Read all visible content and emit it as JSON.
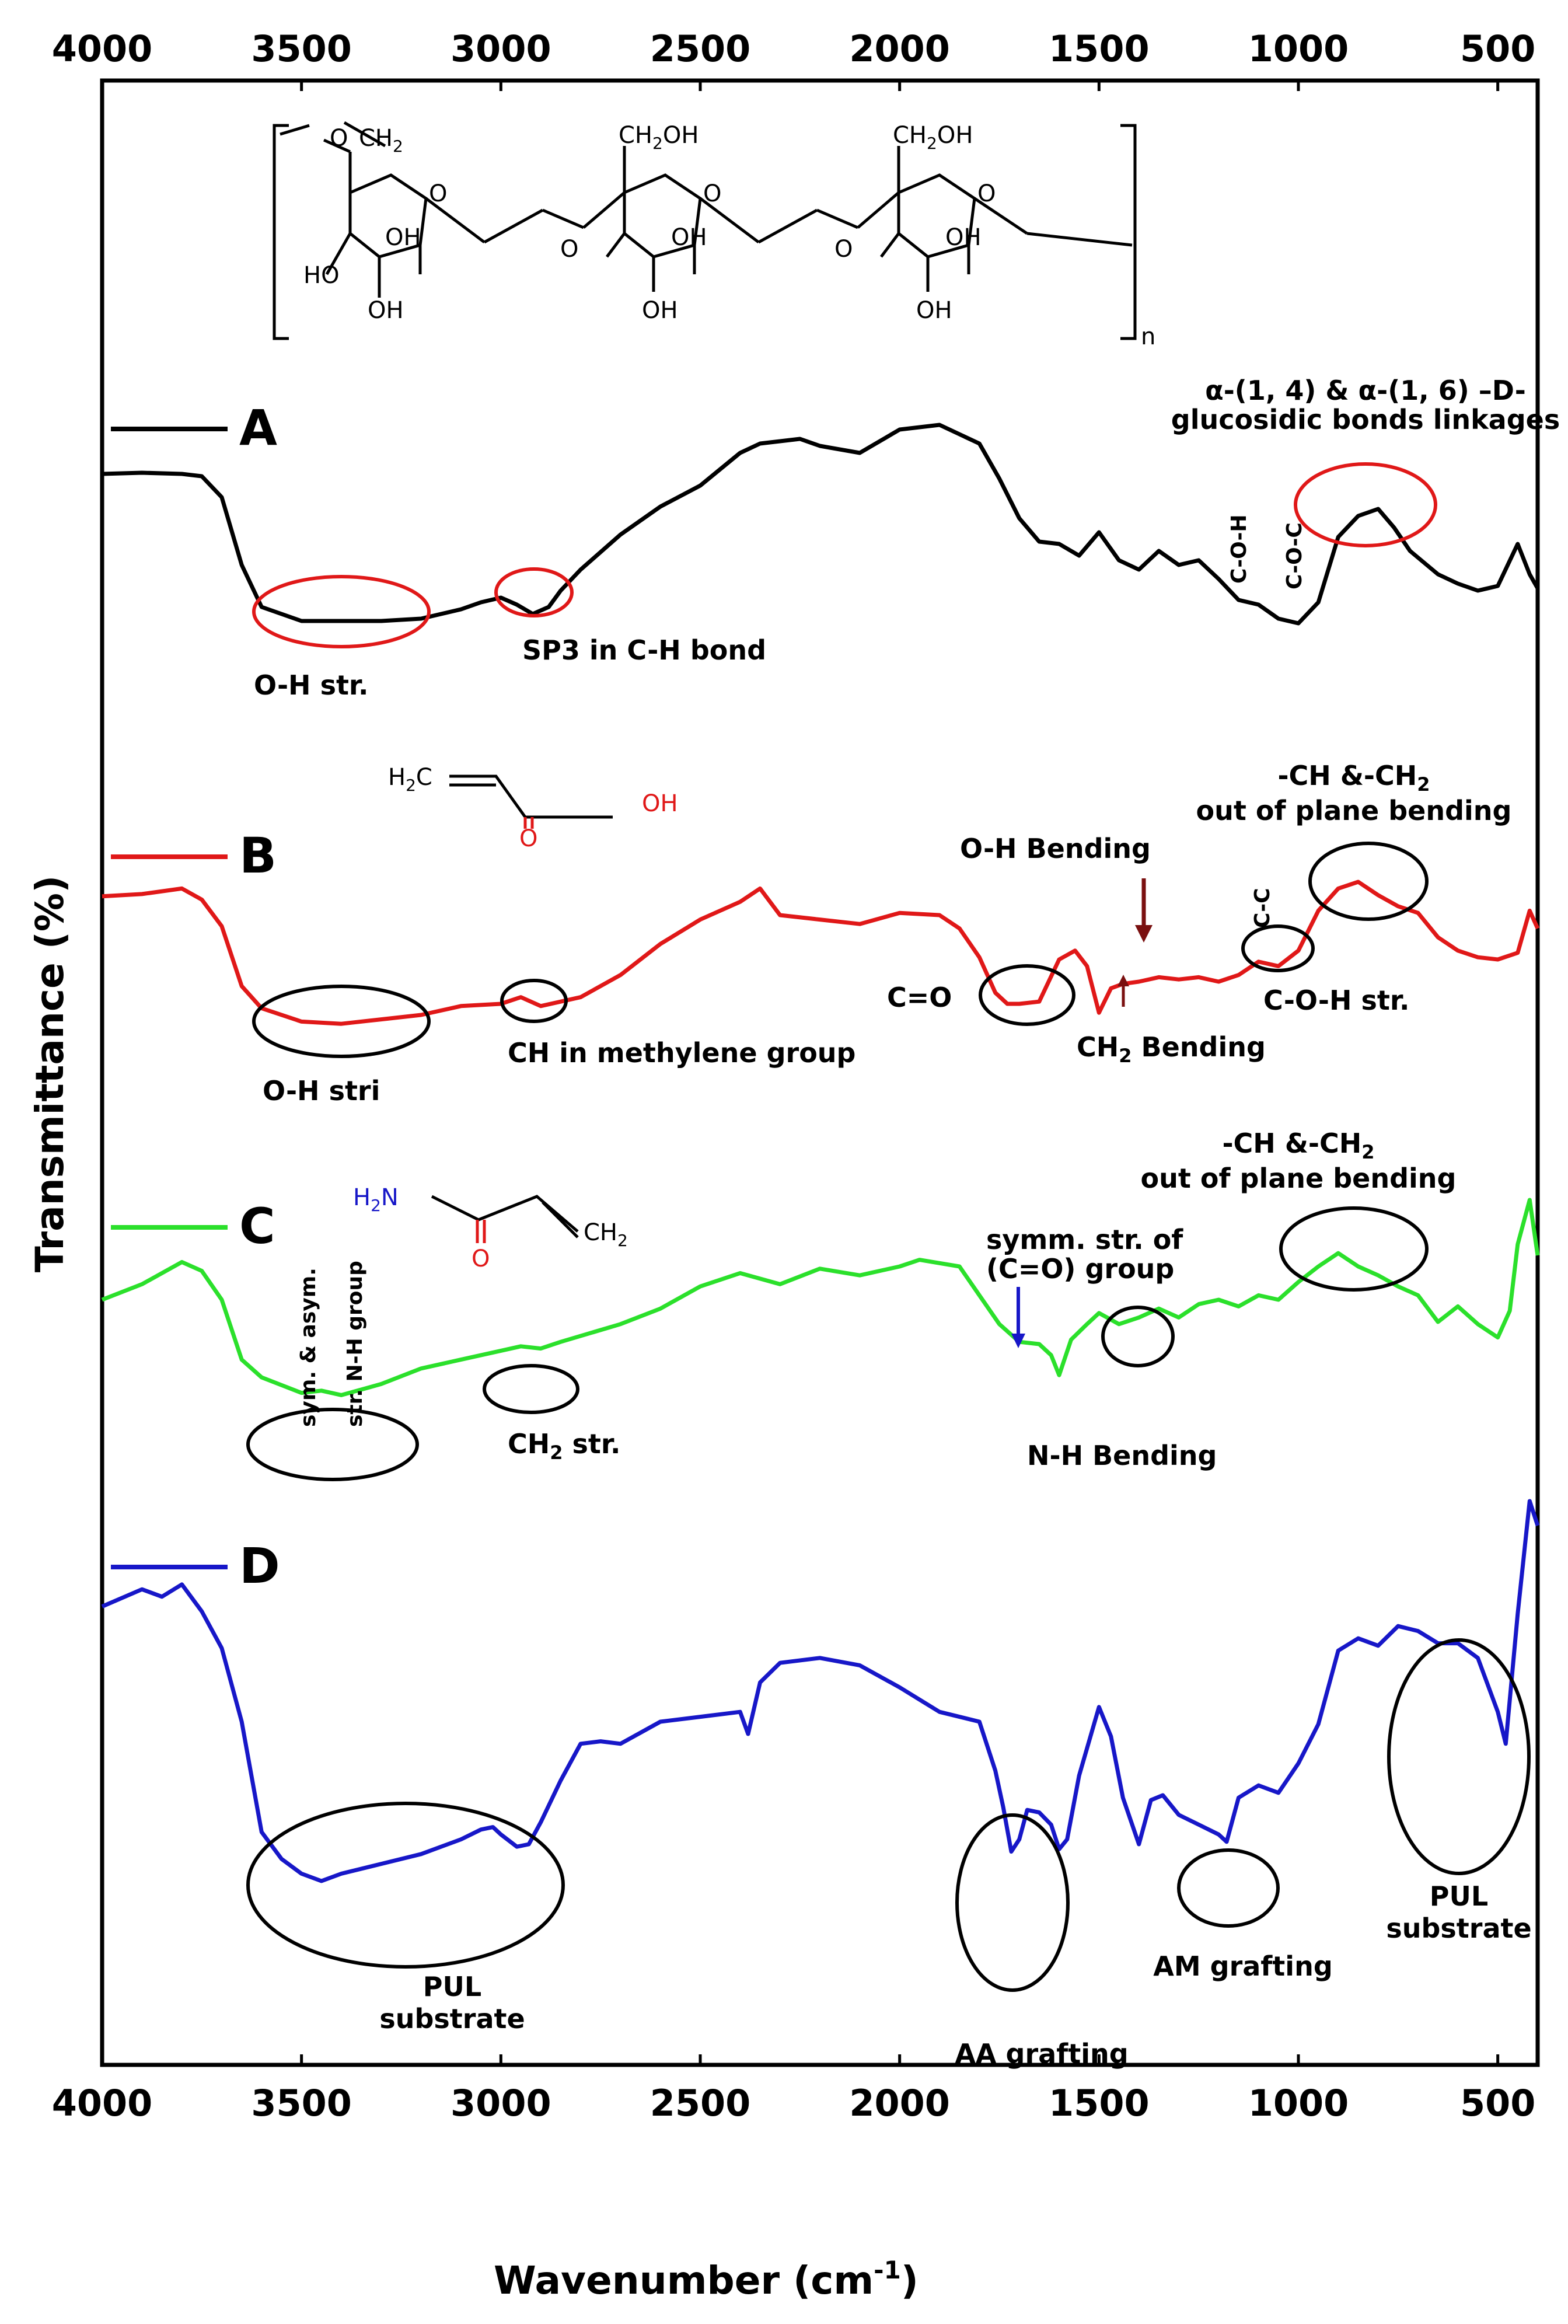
{
  "chart_data": {
    "type": "line",
    "xlabel": "Wavenumber (cm",
    "xlabel_sup": "-1",
    "xlabel_tail": ")",
    "ylabel": "Transmittance (%)",
    "xlim": [
      4000,
      400
    ],
    "x_ticks": [
      "4000",
      "3500",
      "3000",
      "2500",
      "2000",
      "1500",
      "1000",
      "500"
    ],
    "grid": false,
    "legend_placement": "left of each trace",
    "series": [
      {
        "name": "A",
        "color": "#000000",
        "points": [
          [
            4000,
            0.3
          ],
          [
            3900,
            0.25
          ],
          [
            3800,
            0.3
          ],
          [
            3750,
            0.4
          ],
          [
            3700,
            1.3
          ],
          [
            3650,
            4.2
          ],
          [
            3600,
            6.0
          ],
          [
            3500,
            6.6
          ],
          [
            3400,
            6.6
          ],
          [
            3300,
            6.6
          ],
          [
            3200,
            6.5
          ],
          [
            3100,
            6.1
          ],
          [
            3050,
            5.8
          ],
          [
            3000,
            5.6
          ],
          [
            2960,
            5.9
          ],
          [
            2920,
            6.3
          ],
          [
            2880,
            6.0
          ],
          [
            2850,
            5.3
          ],
          [
            2800,
            4.4
          ],
          [
            2700,
            2.9
          ],
          [
            2600,
            1.7
          ],
          [
            2500,
            0.8
          ],
          [
            2400,
            -0.6
          ],
          [
            2350,
            -1.0
          ],
          [
            2300,
            -1.1
          ],
          [
            2250,
            -1.2
          ],
          [
            2200,
            -0.9
          ],
          [
            2100,
            -0.6
          ],
          [
            2000,
            -1.6
          ],
          [
            1900,
            -1.8
          ],
          [
            1800,
            -1.0
          ],
          [
            1750,
            0.5
          ],
          [
            1700,
            2.2
          ],
          [
            1650,
            3.2
          ],
          [
            1600,
            3.3
          ],
          [
            1550,
            3.8
          ],
          [
            1500,
            2.8
          ],
          [
            1450,
            4.0
          ],
          [
            1400,
            4.4
          ],
          [
            1350,
            3.6
          ],
          [
            1300,
            4.2
          ],
          [
            1250,
            4.0
          ],
          [
            1200,
            4.8
          ],
          [
            1150,
            5.7
          ],
          [
            1100,
            5.9
          ],
          [
            1050,
            6.5
          ],
          [
            1000,
            6.7
          ],
          [
            950,
            5.8
          ],
          [
            900,
            3.0
          ],
          [
            850,
            2.1
          ],
          [
            800,
            1.8
          ],
          [
            760,
            2.6
          ],
          [
            720,
            3.6
          ],
          [
            650,
            4.6
          ],
          [
            600,
            5.0
          ],
          [
            550,
            5.3
          ],
          [
            500,
            5.1
          ],
          [
            450,
            3.3
          ],
          [
            420,
            4.6
          ],
          [
            400,
            5.2
          ]
        ]
      },
      {
        "name": "B",
        "color": "#e01818",
        "points": [
          [
            4000,
            0.15
          ],
          [
            3900,
            0.05
          ],
          [
            3800,
            -0.2
          ],
          [
            3750,
            0.3
          ],
          [
            3700,
            1.5
          ],
          [
            3650,
            4.2
          ],
          [
            3600,
            5.2
          ],
          [
            3500,
            5.8
          ],
          [
            3400,
            5.9
          ],
          [
            3300,
            5.7
          ],
          [
            3200,
            5.5
          ],
          [
            3100,
            5.1
          ],
          [
            3000,
            5.0
          ],
          [
            2950,
            4.7
          ],
          [
            2900,
            5.1
          ],
          [
            2800,
            4.7
          ],
          [
            2700,
            3.7
          ],
          [
            2600,
            2.3
          ],
          [
            2500,
            1.2
          ],
          [
            2400,
            0.4
          ],
          [
            2350,
            -0.2
          ],
          [
            2300,
            1.0
          ],
          [
            2200,
            1.2
          ],
          [
            2100,
            1.4
          ],
          [
            2000,
            0.9
          ],
          [
            1900,
            1.0
          ],
          [
            1850,
            1.6
          ],
          [
            1800,
            2.9
          ],
          [
            1760,
            4.5
          ],
          [
            1730,
            5.0
          ],
          [
            1700,
            5.0
          ],
          [
            1650,
            4.9
          ],
          [
            1600,
            3.0
          ],
          [
            1560,
            2.6
          ],
          [
            1530,
            3.3
          ],
          [
            1500,
            5.4
          ],
          [
            1470,
            4.3
          ],
          [
            1440,
            4.1
          ],
          [
            1400,
            4.0
          ],
          [
            1350,
            3.8
          ],
          [
            1300,
            3.9
          ],
          [
            1250,
            3.8
          ],
          [
            1200,
            4.0
          ],
          [
            1150,
            3.7
          ],
          [
            1100,
            3.1
          ],
          [
            1050,
            3.3
          ],
          [
            1000,
            2.6
          ],
          [
            950,
            0.8
          ],
          [
            900,
            -0.2
          ],
          [
            850,
            -0.5
          ],
          [
            800,
            0.1
          ],
          [
            750,
            0.6
          ],
          [
            700,
            0.9
          ],
          [
            650,
            2.0
          ],
          [
            600,
            2.6
          ],
          [
            550,
            2.9
          ],
          [
            500,
            3.0
          ],
          [
            450,
            2.7
          ],
          [
            420,
            0.8
          ],
          [
            400,
            1.6
          ]
        ]
      },
      {
        "name": "C",
        "color": "#2be02b",
        "points": [
          [
            4000,
            1.5
          ],
          [
            3900,
            0.8
          ],
          [
            3800,
            -0.2
          ],
          [
            3750,
            0.2
          ],
          [
            3700,
            1.5
          ],
          [
            3650,
            4.2
          ],
          [
            3600,
            5.0
          ],
          [
            3500,
            5.7
          ],
          [
            3450,
            5.6
          ],
          [
            3400,
            5.8
          ],
          [
            3300,
            5.3
          ],
          [
            3200,
            4.6
          ],
          [
            3100,
            4.2
          ],
          [
            3000,
            3.8
          ],
          [
            2950,
            3.6
          ],
          [
            2900,
            3.7
          ],
          [
            2850,
            3.4
          ],
          [
            2700,
            2.6
          ],
          [
            2600,
            1.9
          ],
          [
            2500,
            0.9
          ],
          [
            2400,
            0.3
          ],
          [
            2300,
            0.8
          ],
          [
            2200,
            0.1
          ],
          [
            2100,
            0.4
          ],
          [
            2000,
            0.0
          ],
          [
            1950,
            -0.3
          ],
          [
            1850,
            0.0
          ],
          [
            1800,
            1.3
          ],
          [
            1750,
            2.6
          ],
          [
            1700,
            3.4
          ],
          [
            1650,
            3.5
          ],
          [
            1620,
            4.0
          ],
          [
            1600,
            4.9
          ],
          [
            1570,
            3.3
          ],
          [
            1530,
            2.6
          ],
          [
            1500,
            2.1
          ],
          [
            1450,
            2.6
          ],
          [
            1400,
            2.3
          ],
          [
            1350,
            1.9
          ],
          [
            1300,
            2.3
          ],
          [
            1250,
            1.7
          ],
          [
            1200,
            1.5
          ],
          [
            1150,
            1.8
          ],
          [
            1100,
            1.3
          ],
          [
            1050,
            1.5
          ],
          [
            1000,
            0.7
          ],
          [
            950,
            0.0
          ],
          [
            900,
            -0.6
          ],
          [
            850,
            0.0
          ],
          [
            800,
            0.4
          ],
          [
            750,
            0.9
          ],
          [
            700,
            1.3
          ],
          [
            650,
            2.5
          ],
          [
            600,
            1.8
          ],
          [
            550,
            2.6
          ],
          [
            500,
            3.2
          ],
          [
            470,
            2.0
          ],
          [
            450,
            -1.0
          ],
          [
            420,
            -3.0
          ],
          [
            400,
            -0.5
          ]
        ]
      },
      {
        "name": "D",
        "color": "#1717c8",
        "points": [
          [
            4000,
            0.3
          ],
          [
            3900,
            -0.4
          ],
          [
            3850,
            -0.1
          ],
          [
            3800,
            -0.6
          ],
          [
            3750,
            0.5
          ],
          [
            3700,
            2.0
          ],
          [
            3650,
            5.0
          ],
          [
            3600,
            9.5
          ],
          [
            3550,
            10.6
          ],
          [
            3500,
            11.2
          ],
          [
            3450,
            11.5
          ],
          [
            3400,
            11.2
          ],
          [
            3300,
            10.8
          ],
          [
            3200,
            10.4
          ],
          [
            3100,
            9.8
          ],
          [
            3050,
            9.4
          ],
          [
            3020,
            9.3
          ],
          [
            3000,
            9.6
          ],
          [
            2960,
            10.1
          ],
          [
            2930,
            10.0
          ],
          [
            2900,
            9.1
          ],
          [
            2850,
            7.4
          ],
          [
            2800,
            5.9
          ],
          [
            2750,
            5.8
          ],
          [
            2700,
            5.9
          ],
          [
            2600,
            5.0
          ],
          [
            2500,
            4.8
          ],
          [
            2400,
            4.6
          ],
          [
            2380,
            5.5
          ],
          [
            2350,
            3.4
          ],
          [
            2300,
            2.6
          ],
          [
            2200,
            2.4
          ],
          [
            2100,
            2.7
          ],
          [
            2000,
            3.6
          ],
          [
            1900,
            4.6
          ],
          [
            1800,
            5.0
          ],
          [
            1760,
            7.0
          ],
          [
            1740,
            8.5
          ],
          [
            1720,
            10.3
          ],
          [
            1700,
            9.8
          ],
          [
            1680,
            8.6
          ],
          [
            1650,
            8.7
          ],
          [
            1620,
            9.2
          ],
          [
            1600,
            10.2
          ],
          [
            1580,
            9.8
          ],
          [
            1550,
            7.2
          ],
          [
            1500,
            4.4
          ],
          [
            1470,
            5.6
          ],
          [
            1440,
            8.1
          ],
          [
            1400,
            10.0
          ],
          [
            1370,
            8.2
          ],
          [
            1340,
            8.0
          ],
          [
            1300,
            8.8
          ],
          [
            1250,
            9.2
          ],
          [
            1200,
            9.6
          ],
          [
            1180,
            9.9
          ],
          [
            1150,
            8.1
          ],
          [
            1100,
            7.6
          ],
          [
            1050,
            7.9
          ],
          [
            1000,
            6.7
          ],
          [
            950,
            5.1
          ],
          [
            900,
            2.1
          ],
          [
            850,
            1.6
          ],
          [
            800,
            1.9
          ],
          [
            750,
            1.1
          ],
          [
            700,
            1.3
          ],
          [
            650,
            1.8
          ],
          [
            600,
            1.8
          ],
          [
            550,
            2.4
          ],
          [
            500,
            4.6
          ],
          [
            480,
            5.9
          ],
          [
            450,
            0.6
          ],
          [
            420,
            -4.0
          ],
          [
            400,
            -3.0
          ]
        ]
      }
    ],
    "annotations": {
      "A_top_1": "α-(1, 4) & α-(1, 6) –D-",
      "A_top_2": "glucosidic bonds linkages",
      "A_oh": "O-H str.",
      "A_sp3": "SP3 in C-H bond",
      "A_coh": "C-O-H",
      "A_coc": "C-O-C",
      "B_oh_bend": "O-H Bending",
      "B_ch_top_1": "-CH &-CH",
      "B_ch_top_2": "out of plane bending",
      "B_cc": "C-C",
      "B_co": "C=O",
      "B_coh": "C-O-H str.",
      "B_ch2_bend": "CH",
      "B_ch2_bend_tail": " Bending",
      "B_ch_methylene": "CH in methylene group",
      "B_oh_stri": "O-H stri",
      "C_ch_top_1": "-CH &-CH",
      "C_ch_top_2": "out of plane bending",
      "C_symm_1": "symm. str. of",
      "C_symm_2": "(C=O) group",
      "C_nh_1": "sym. & asym.",
      "C_nh_2": "str. N-H group",
      "C_ch2": "CH",
      "C_ch2_tail": " str.",
      "C_nh_bend": "N-H Bending",
      "D_pul_left_1": "PUL",
      "D_pul_left_2": "substrate",
      "D_aa": "AA grafting",
      "D_am": "AM grafting",
      "D_pul_right_1": "PUL",
      "D_pul_right_2": "substrate"
    },
    "chem_structures": {
      "pullulan": {
        "ch2": "CH",
        "ch2oh": "CH",
        "oh": "OH",
        "ho": "HO",
        "o": "O",
        "n": "n"
      },
      "acrylic_acid": {
        "h2c": "H",
        "oh": "OH",
        "o": "O"
      },
      "acrylamide": {
        "h2n": "H",
        "n": "N",
        "ch2": "CH",
        "o": "O"
      }
    }
  }
}
